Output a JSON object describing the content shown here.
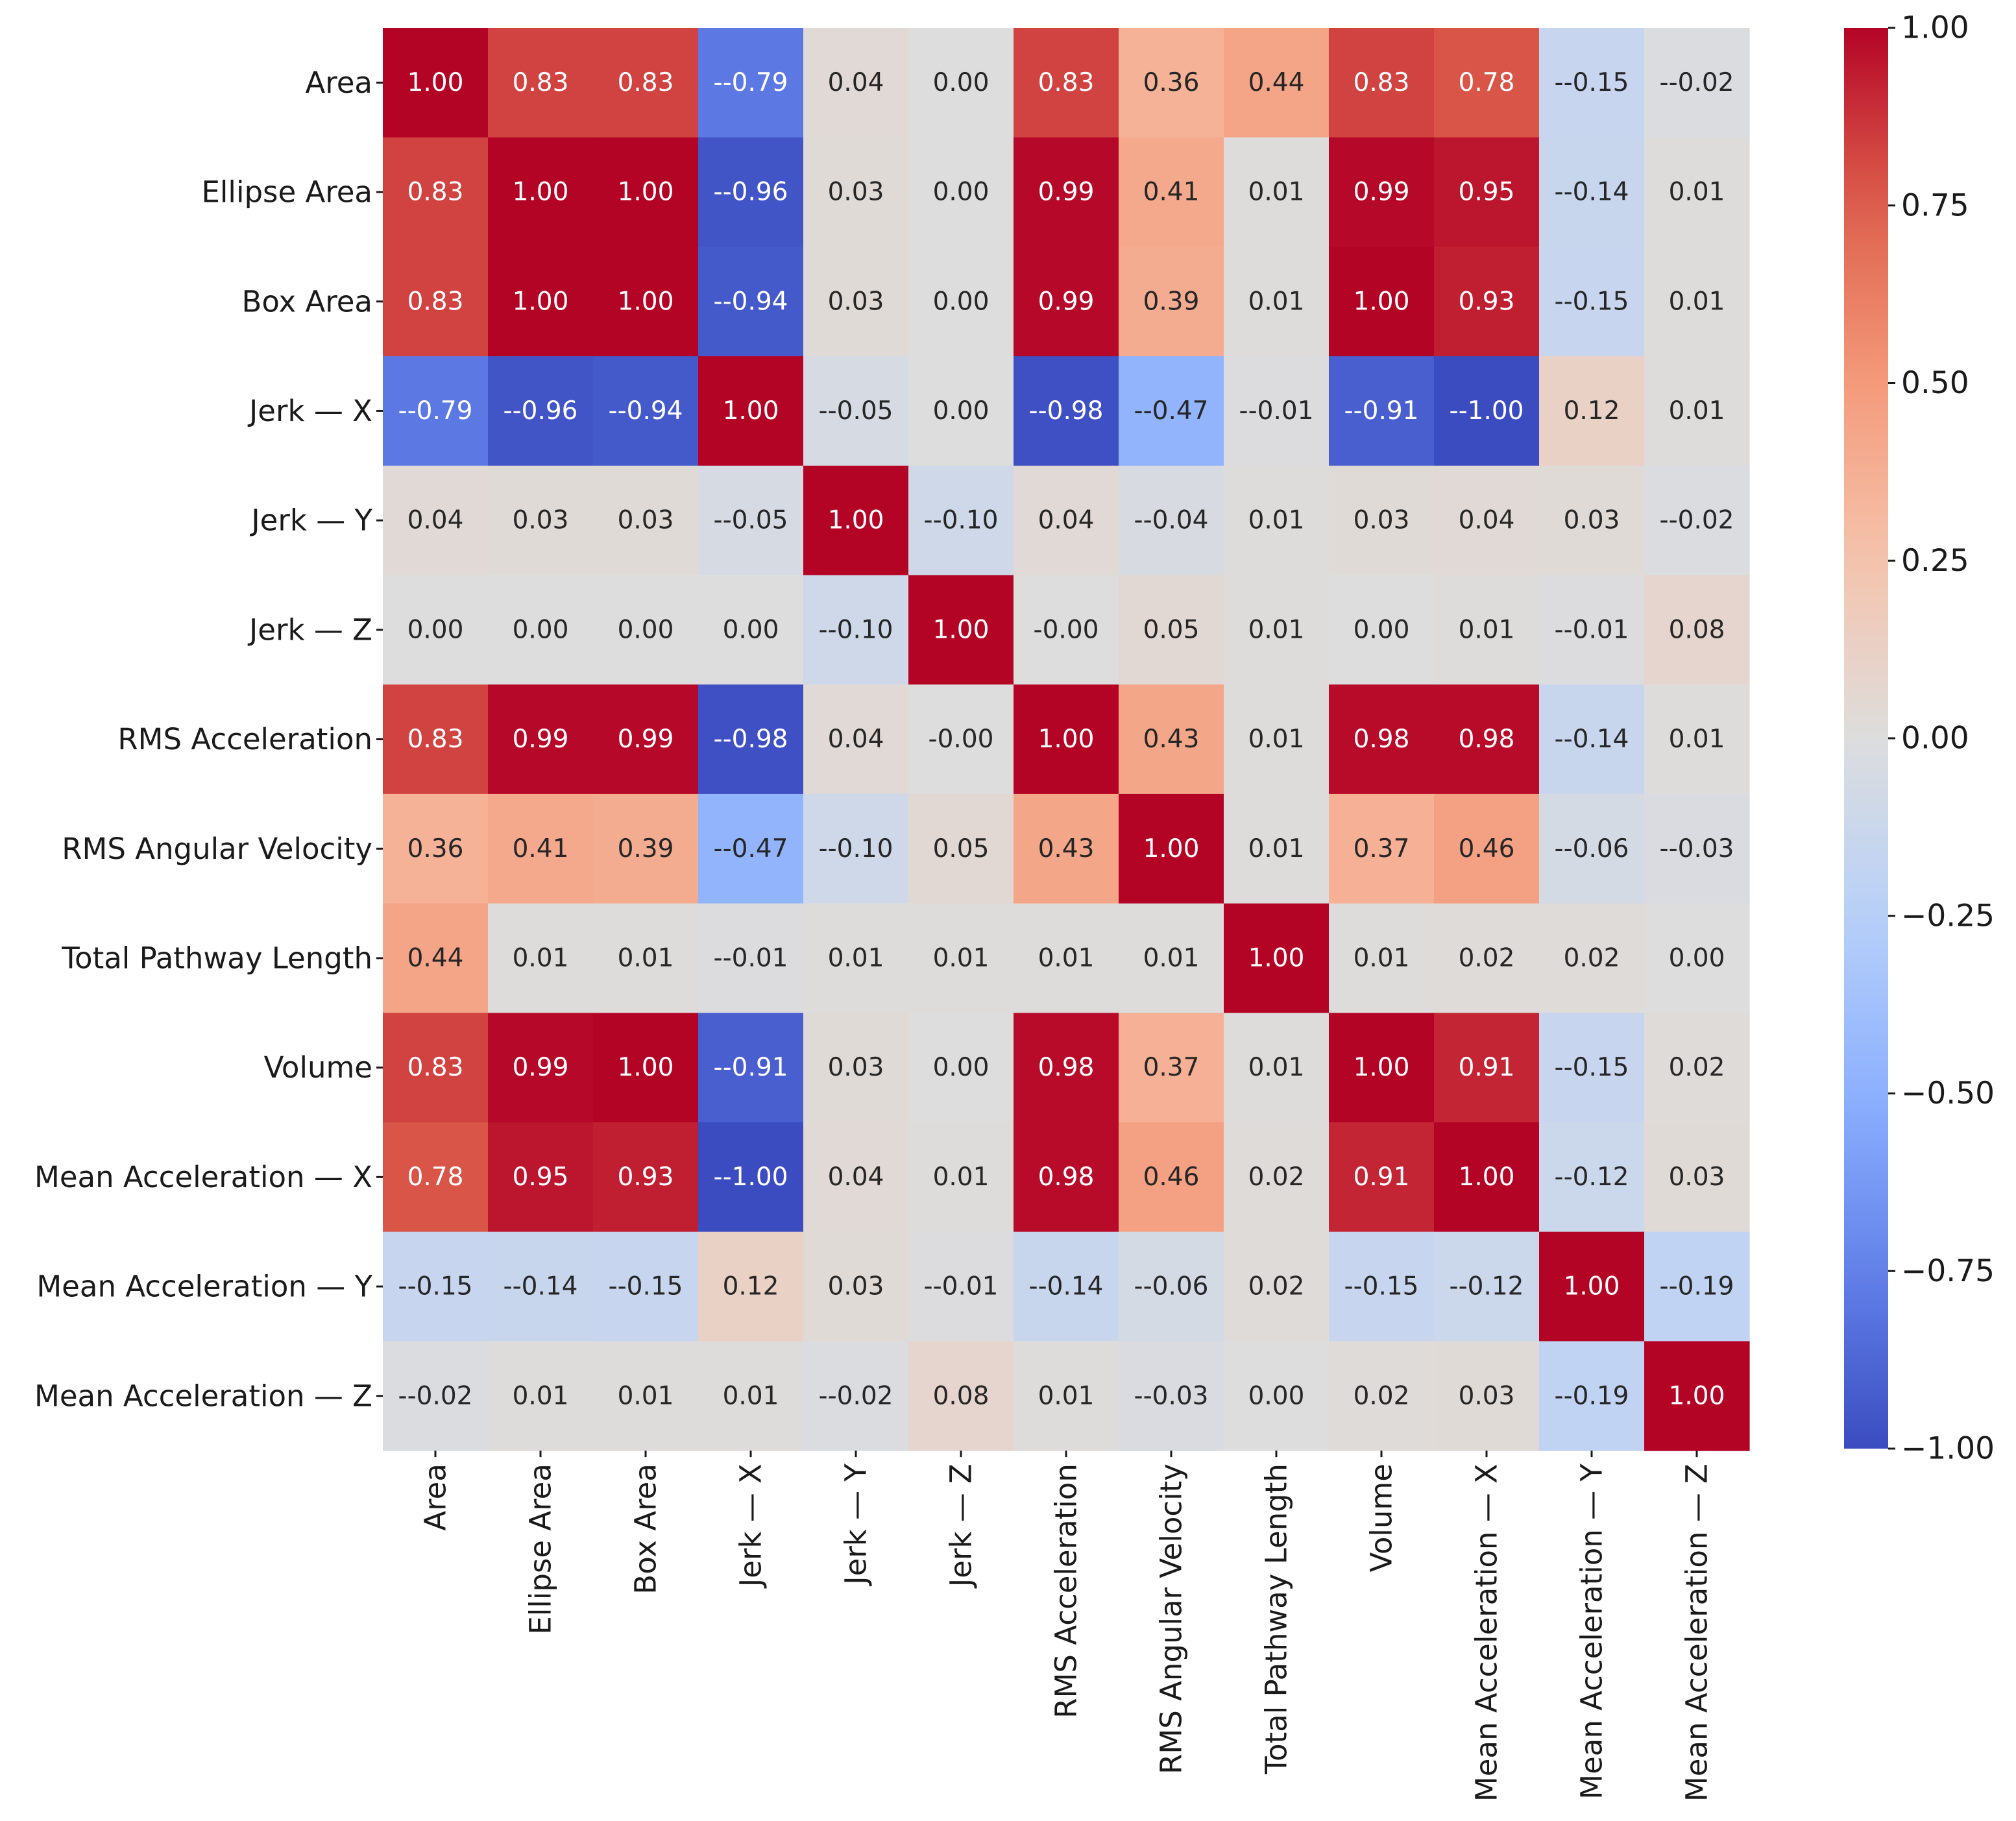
{
  "chart_data": {
    "type": "heatmap",
    "title": "",
    "xlabel": "",
    "ylabel": "",
    "colormap": "coolwarm",
    "vmin": -1.0,
    "vmax": 1.0,
    "colorbar_ticks": [
      "1.00",
      "0.75",
      "0.50",
      "0.25",
      "0.00",
      "−0.25",
      "−0.50",
      "−0.75",
      "−1.00"
    ],
    "colorbar_tick_values": [
      1.0,
      0.75,
      0.5,
      0.25,
      0.0,
      -0.25,
      -0.5,
      -0.75,
      -1.0
    ],
    "variables": [
      "Area",
      "Ellipse Area",
      "Box Area",
      "Jerk — X",
      "Jerk — Y",
      "Jerk — Z",
      "RMS Acceleration",
      "RMS Angular Velocity",
      "Total Pathway Length",
      "Volume",
      "Mean Acceleration — X",
      "Mean Acceleration — Y",
      "Mean Acceleration — Z"
    ],
    "values": [
      [
        1.0,
        0.83,
        0.83,
        -0.79,
        0.04,
        0.0,
        0.83,
        0.36,
        0.44,
        0.83,
        0.78,
        -0.15,
        -0.02
      ],
      [
        0.83,
        1.0,
        1.0,
        -0.96,
        0.03,
        0.0,
        0.99,
        0.41,
        0.01,
        0.99,
        0.95,
        -0.14,
        0.01
      ],
      [
        0.83,
        1.0,
        1.0,
        -0.94,
        0.03,
        0.0,
        0.99,
        0.39,
        0.01,
        1.0,
        0.93,
        -0.15,
        0.01
      ],
      [
        -0.79,
        -0.96,
        -0.94,
        1.0,
        -0.05,
        0.0,
        -0.98,
        -0.47,
        -0.01,
        -0.91,
        -1.0,
        0.12,
        0.01
      ],
      [
        0.04,
        0.03,
        0.03,
        -0.05,
        1.0,
        -0.1,
        0.04,
        -0.04,
        0.01,
        0.03,
        0.04,
        0.03,
        -0.02
      ],
      [
        0.0,
        0.0,
        0.0,
        0.0,
        -0.1,
        1.0,
        -0.0,
        0.05,
        0.01,
        0.0,
        0.01,
        -0.01,
        0.08
      ],
      [
        0.83,
        0.99,
        0.99,
        -0.98,
        0.04,
        -0.0,
        1.0,
        0.43,
        0.01,
        0.98,
        0.98,
        -0.14,
        0.01
      ],
      [
        0.36,
        0.41,
        0.39,
        -0.47,
        -0.1,
        0.05,
        0.43,
        1.0,
        0.01,
        0.37,
        0.46,
        -0.06,
        -0.03
      ],
      [
        0.44,
        0.01,
        0.01,
        -0.01,
        0.01,
        0.01,
        0.01,
        0.01,
        1.0,
        0.01,
        0.02,
        0.02,
        0.0
      ],
      [
        0.83,
        0.99,
        1.0,
        -0.91,
        0.03,
        0.0,
        0.98,
        0.37,
        0.01,
        1.0,
        0.91,
        -0.15,
        0.02
      ],
      [
        0.78,
        0.95,
        0.93,
        -1.0,
        0.04,
        0.01,
        0.98,
        0.46,
        0.02,
        0.91,
        1.0,
        -0.12,
        0.03
      ],
      [
        -0.15,
        -0.14,
        -0.15,
        0.12,
        0.03,
        -0.01,
        -0.14,
        -0.06,
        0.02,
        -0.15,
        -0.12,
        1.0,
        -0.19
      ],
      [
        -0.02,
        0.01,
        0.01,
        0.01,
        -0.02,
        0.08,
        0.01,
        -0.03,
        0.0,
        0.02,
        0.03,
        -0.19,
        1.0
      ]
    ],
    "annotations": [
      [
        "1.00",
        "0.83",
        "0.83",
        "--0.79",
        "0.04",
        "0.00",
        "0.83",
        "0.36",
        "0.44",
        "0.83",
        "0.78",
        "--0.15",
        "--0.02"
      ],
      [
        "0.83",
        "1.00",
        "1.00",
        "--0.96",
        "0.03",
        "0.00",
        "0.99",
        "0.41",
        "0.01",
        "0.99",
        "0.95",
        "--0.14",
        "0.01"
      ],
      [
        "0.83",
        "1.00",
        "1.00",
        "--0.94",
        "0.03",
        "0.00",
        "0.99",
        "0.39",
        "0.01",
        "1.00",
        "0.93",
        "--0.15",
        "0.01"
      ],
      [
        "--0.79",
        "--0.96",
        "--0.94",
        "1.00",
        "--0.05",
        "0.00",
        "--0.98",
        "--0.47",
        "--0.01",
        "--0.91",
        "--1.00",
        "0.12",
        "0.01"
      ],
      [
        "0.04",
        "0.03",
        "0.03",
        "--0.05",
        "1.00",
        "--0.10",
        "0.04",
        "--0.04",
        "0.01",
        "0.03",
        "0.04",
        "0.03",
        "--0.02"
      ],
      [
        "0.00",
        "0.00",
        "0.00",
        "0.00",
        "--0.10",
        "1.00",
        "-0.00",
        "0.05",
        "0.01",
        "0.00",
        "0.01",
        "--0.01",
        "0.08"
      ],
      [
        "0.83",
        "0.99",
        "0.99",
        "--0.98",
        "0.04",
        "-0.00",
        "1.00",
        "0.43",
        "0.01",
        "0.98",
        "0.98",
        "--0.14",
        "0.01"
      ],
      [
        "0.36",
        "0.41",
        "0.39",
        "--0.47",
        "--0.10",
        "0.05",
        "0.43",
        "1.00",
        "0.01",
        "0.37",
        "0.46",
        "--0.06",
        "--0.03"
      ],
      [
        "0.44",
        "0.01",
        "0.01",
        "--0.01",
        "0.01",
        "0.01",
        "0.01",
        "0.01",
        "1.00",
        "0.01",
        "0.02",
        "0.02",
        "0.00"
      ],
      [
        "0.83",
        "0.99",
        "1.00",
        "--0.91",
        "0.03",
        "0.00",
        "0.98",
        "0.37",
        "0.01",
        "1.00",
        "0.91",
        "--0.15",
        "0.02"
      ],
      [
        "0.78",
        "0.95",
        "0.93",
        "--1.00",
        "0.04",
        "0.01",
        "0.98",
        "0.46",
        "0.02",
        "0.91",
        "1.00",
        "--0.12",
        "0.03"
      ],
      [
        "--0.15",
        "--0.14",
        "--0.15",
        "0.12",
        "0.03",
        "--0.01",
        "--0.14",
        "--0.06",
        "0.02",
        "--0.15",
        "--0.12",
        "1.00",
        "--0.19"
      ],
      [
        "--0.02",
        "0.01",
        "0.01",
        "0.01",
        "--0.02",
        "0.08",
        "0.01",
        "--0.03",
        "0.00",
        "0.02",
        "0.03",
        "--0.19",
        "1.00"
      ]
    ]
  }
}
